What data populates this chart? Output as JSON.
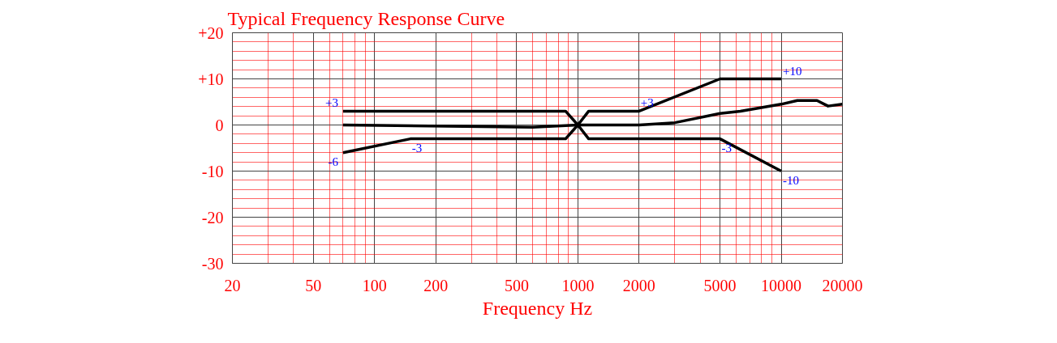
{
  "chart_data": {
    "type": "line",
    "title": "Typical Frequency Response Curve",
    "xlabel": "Frequency Hz",
    "log": "x",
    "xlim": [
      20,
      20000
    ],
    "ylim": [
      -30,
      20
    ],
    "xticks": [
      20,
      50,
      100,
      200,
      500,
      1000,
      2000,
      5000,
      10000,
      20000,
      {
        "value": 30,
        "label": null
      },
      {
        "value": 40,
        "label": null
      },
      {
        "value": 60,
        "label": null
      },
      {
        "value": 70,
        "label": null
      },
      {
        "value": 80,
        "label": null
      },
      {
        "value": 90,
        "label": null
      },
      {
        "value": 300,
        "label": null
      },
      {
        "value": 400,
        "label": null
      },
      {
        "value": 600,
        "label": null
      },
      {
        "value": 700,
        "label": null
      },
      {
        "value": 800,
        "label": null
      },
      {
        "value": 900,
        "label": null
      },
      {
        "value": 3000,
        "label": null
      },
      {
        "value": 4000,
        "label": null
      },
      {
        "value": 6000,
        "label": null
      },
      {
        "value": 7000,
        "label": null
      },
      {
        "value": 8000,
        "label": null
      },
      {
        "value": 9000,
        "label": null
      }
    ],
    "yticks": [
      {
        "value": -30,
        "label": "-30"
      },
      {
        "value": -20,
        "label": "-20"
      },
      {
        "value": -10,
        "label": "-10"
      },
      {
        "value": 0,
        "label": "0"
      },
      {
        "value": 10,
        "label": "+10"
      },
      {
        "value": 20,
        "label": "+20"
      },
      {
        "value": -28,
        "label": null
      },
      {
        "value": -26,
        "label": null
      },
      {
        "value": -24,
        "label": null
      },
      {
        "value": -22,
        "label": null
      },
      {
        "value": -18,
        "label": null
      },
      {
        "value": -16,
        "label": null
      },
      {
        "value": -14,
        "label": null
      },
      {
        "value": -12,
        "label": null
      },
      {
        "value": -8,
        "label": null
      },
      {
        "value": -6,
        "label": null
      },
      {
        "value": -4,
        "label": null
      },
      {
        "value": -2,
        "label": null
      },
      {
        "value": 2,
        "label": null
      },
      {
        "value": 4,
        "label": null
      },
      {
        "value": 6,
        "label": null
      },
      {
        "value": 8,
        "label": null
      },
      {
        "value": 12,
        "label": null
      },
      {
        "value": 14,
        "label": null
      },
      {
        "value": 16,
        "label": null
      },
      {
        "value": 18,
        "label": null
      }
    ],
    "grid": true,
    "line_style": "solid",
    "series": [
      {
        "color": "#000000",
        "x": [
          70,
          870,
          1000,
          1130,
          2000,
          5000,
          10000
        ],
        "values": [
          3,
          3,
          0,
          3,
          3,
          10,
          10
        ]
      },
      {
        "color": "#000000",
        "x": [
          70,
          600,
          1000,
          2000,
          3000,
          5000,
          6300,
          10000,
          12000,
          15000,
          17000,
          20000
        ],
        "values": [
          0,
          -0.5,
          0,
          0,
          0.5,
          2.5,
          3,
          4.5,
          5.3,
          5.3,
          4.1,
          4.5
        ]
      },
      {
        "color": "#000000",
        "x": [
          70,
          150,
          870,
          1000,
          1130,
          5000,
          10000
        ],
        "values": [
          -6,
          -3,
          -3,
          0,
          -3,
          -3,
          -10
        ]
      }
    ],
    "annotations": [
      {
        "text": "+3",
        "x": 70,
        "y": 3
      },
      {
        "text": "-6",
        "x": 70,
        "y": -6
      },
      {
        "text": "-3",
        "x": 150,
        "y": -3
      },
      {
        "text": "+3",
        "x": 2000,
        "y": 3
      },
      {
        "text": "+10",
        "x": 10000,
        "y": 10
      },
      {
        "text": "-3",
        "x": 5000,
        "y": -3
      },
      {
        "text": "-10",
        "x": 10000,
        "y": -10
      }
    ]
  }
}
